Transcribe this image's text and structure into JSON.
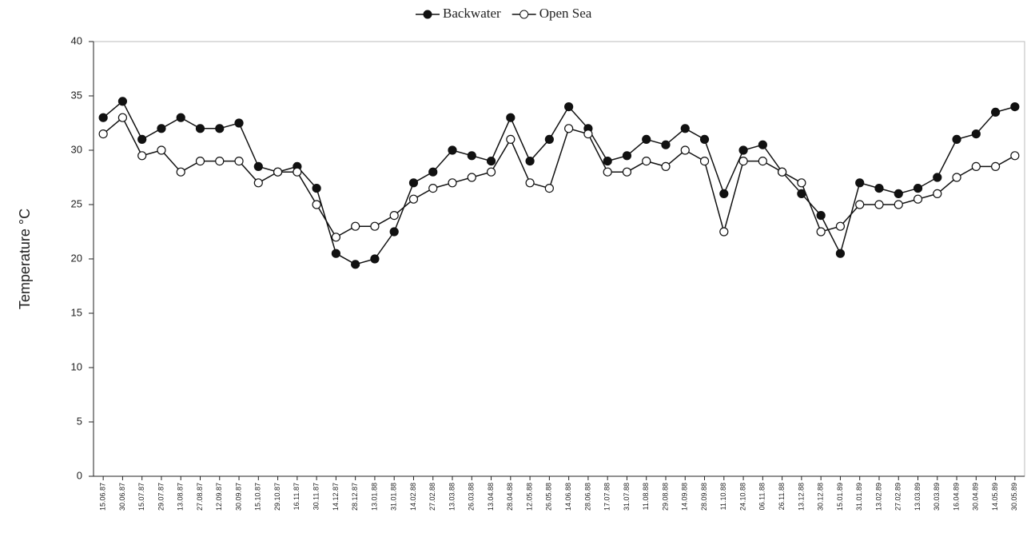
{
  "chart_data": {
    "type": "line",
    "y_label": "Temperature °C",
    "categories": [
      "15.06.87",
      "30.06.87",
      "15.07.87",
      "29.07.87",
      "13.08.87",
      "27.08.87",
      "12.09.87",
      "30.09.87",
      "15.10.87",
      "29.10.87",
      "16.11.87",
      "30.11.87",
      "14.12.87",
      "28.12.87",
      "13.01.88",
      "31.01.88",
      "14.02.88",
      "27.02.88",
      "13.03.88",
      "26.03.88",
      "13.04.88",
      "28.04.88",
      "12.05.88",
      "26.05.88",
      "14.06.88",
      "28.06.88",
      "17.07.88",
      "31.07.88",
      "11.08.88",
      "29.08.88",
      "14.09.88",
      "28.09.88",
      "11.10.88",
      "24.10.88",
      "06.11.88",
      "26.11.88",
      "13.12.88",
      "30.12.88",
      "15.01.89",
      "31.01.89",
      "13.02.89",
      "27.02.89",
      "13.03.89",
      "30.03.89",
      "16.04.89",
      "30.04.89",
      "14.05.89",
      "30.05.89"
    ],
    "series": [
      {
        "name": "Backwater",
        "color": "#111111",
        "marker": "filled",
        "values": [
          33,
          34.5,
          31,
          32,
          33,
          32,
          32,
          32.5,
          28.5,
          28,
          28.5,
          26.5,
          20.5,
          19.5,
          20,
          22.5,
          27,
          28,
          30,
          29.5,
          29,
          33,
          29,
          31,
          34,
          32,
          29,
          29.5,
          31,
          30.5,
          32,
          31,
          26,
          30,
          30.5,
          28,
          26,
          24,
          20.5,
          27,
          26.5,
          26,
          26.5,
          27.5,
          31,
          31.5,
          33.5,
          34
        ]
      },
      {
        "name": "Open Sea",
        "color": "#111111",
        "marker": "open",
        "values": [
          31.5,
          33,
          29.5,
          30,
          28,
          29,
          29,
          29,
          27,
          28,
          28,
          25,
          22,
          23,
          23,
          24,
          25.5,
          26.5,
          27,
          27.5,
          28,
          31,
          27,
          26.5,
          32,
          31.5,
          28,
          28,
          29,
          28.5,
          30,
          29,
          22.5,
          29,
          29,
          28,
          27,
          22.5,
          23,
          25,
          25,
          25,
          25.5,
          26,
          27.5,
          28.5,
          28.5,
          29.5
        ]
      }
    ],
    "ylim": [
      0,
      40
    ],
    "yticks": [
      0,
      5,
      10,
      15,
      20,
      25,
      30,
      35,
      40
    ],
    "grid": false,
    "legend": "top"
  }
}
